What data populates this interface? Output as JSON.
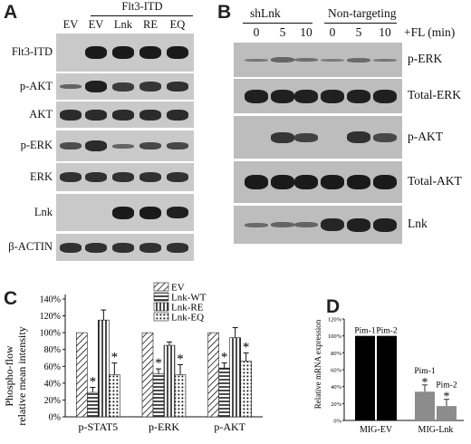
{
  "panelA": {
    "letter": "A",
    "group_label": "Flt3-ITD",
    "lanes": [
      "EV",
      "EV",
      "Lnk",
      "RE",
      "EQ"
    ],
    "rows": [
      {
        "label": "Flt3-ITD",
        "levels": [
          0.0,
          1.0,
          1.0,
          1.0,
          1.0
        ]
      },
      {
        "label": "p-AKT",
        "levels": [
          0.35,
          0.95,
          0.7,
          0.75,
          0.8
        ]
      },
      {
        "label": "AKT",
        "levels": [
          0.85,
          0.85,
          0.85,
          0.85,
          0.85
        ]
      },
      {
        "label": "p-ERK",
        "levels": [
          0.55,
          0.85,
          0.35,
          0.6,
          0.6
        ]
      },
      {
        "label": "ERK",
        "levels": [
          0.8,
          0.8,
          0.8,
          0.8,
          0.8
        ]
      },
      {
        "label": "Lnk",
        "levels": [
          0.0,
          0.0,
          1.0,
          1.0,
          0.95
        ]
      },
      {
        "label": "β-ACTIN",
        "levels": [
          0.8,
          0.8,
          0.8,
          0.8,
          0.8
        ]
      }
    ]
  },
  "panelB": {
    "letter": "B",
    "groups": [
      "shLnk",
      "Non-targeting"
    ],
    "timepoints": [
      "0",
      "5",
      "10",
      "0",
      "5",
      "10"
    ],
    "fl_label": "+FL (min)",
    "rows": [
      {
        "label": "p-ERK",
        "levels": [
          0.2,
          0.35,
          0.25,
          0.15,
          0.3,
          0.2
        ]
      },
      {
        "label": "Total-ERK",
        "levels": [
          0.95,
          0.95,
          0.95,
          0.95,
          0.95,
          0.95
        ]
      },
      {
        "label": "p-AKT",
        "levels": [
          0.0,
          0.75,
          0.65,
          0.0,
          0.8,
          0.6
        ]
      },
      {
        "label": "Total-AKT",
        "levels": [
          1.0,
          1.0,
          1.0,
          1.0,
          1.0,
          1.0
        ]
      },
      {
        "label": "Lnk",
        "levels": [
          0.3,
          0.35,
          0.35,
          0.9,
          0.95,
          0.95
        ]
      }
    ]
  },
  "panelC": {
    "letter": "C",
    "ylabel_line1": "Phospho-flow",
    "ylabel_line2": "relative mean intensity",
    "yticks": [
      "0%",
      "20%",
      "40%",
      "60%",
      "80%",
      "100%",
      "120%",
      "140%"
    ],
    "legend": [
      "EV",
      "Lnk-WT",
      "Lnk-RE",
      "Lnk-EQ"
    ],
    "chart_data": {
      "type": "bar",
      "categories": [
        "p-STAT5",
        "p-ERK",
        "p-AKT"
      ],
      "ylim": [
        0,
        140
      ],
      "series": [
        {
          "name": "EV",
          "values": [
            100,
            100,
            100
          ],
          "errors": [
            0,
            0,
            0
          ],
          "sig": [
            false,
            false,
            false
          ]
        },
        {
          "name": "Lnk-WT",
          "values": [
            29,
            51,
            58
          ],
          "errors": [
            6,
            6,
            6
          ],
          "sig": [
            true,
            true,
            true
          ]
        },
        {
          "name": "Lnk-RE",
          "values": [
            115,
            85,
            94
          ],
          "errors": [
            12,
            4,
            12
          ],
          "sig": [
            false,
            false,
            false
          ]
        },
        {
          "name": "Lnk-EQ",
          "values": [
            50,
            50,
            66
          ],
          "errors": [
            14,
            12,
            10
          ],
          "sig": [
            true,
            true,
            true
          ]
        }
      ]
    }
  },
  "panelD": {
    "letter": "D",
    "ylabel": "Relative mRNA expression",
    "yticks": [
      "0%",
      "20%",
      "40%",
      "60%",
      "80%",
      "100%",
      "120%"
    ],
    "chart_data": {
      "type": "bar",
      "categories": [
        "MIG-EV",
        "MIG-Lnk"
      ],
      "ylim": [
        0,
        120
      ],
      "series": [
        {
          "name": "Pim-1",
          "values": [
            100,
            34
          ],
          "errors": [
            0,
            8
          ],
          "sig": [
            false,
            true
          ]
        },
        {
          "name": "Pim-2",
          "values": [
            100,
            17
          ],
          "errors": [
            0,
            8
          ],
          "sig": [
            false,
            true
          ]
        }
      ]
    }
  }
}
